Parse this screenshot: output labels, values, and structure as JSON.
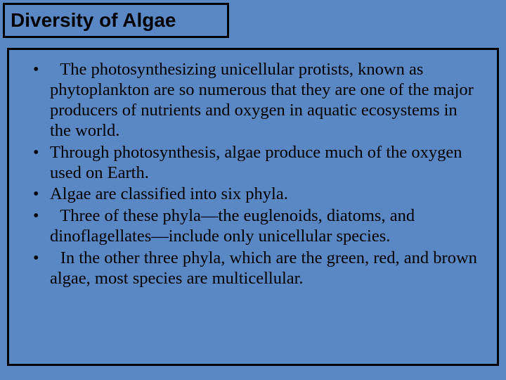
{
  "slide": {
    "background_color": "#5a88c4",
    "title_box": {
      "text": "Diversity of Algae",
      "background_color": "#5a88c4",
      "border_color": "#000000",
      "font_family": "Arial",
      "font_weight": "bold",
      "font_size_pt": 21,
      "text_color": "#000000"
    },
    "content_box": {
      "background_color": "#5a88c4",
      "border_color": "#000000",
      "font_family": "Times New Roman",
      "font_size_pt": 18,
      "text_color": "#000000",
      "bullets": [
        {
          "text": " The photosynthesizing unicellular protists, known as phytoplankton are so numerous that they are one of the major producers of nutrients and oxygen in aquatic ecosystems in the world.",
          "leading_space": true
        },
        {
          "text": "Through photosynthesis, algae produce much of the oxygen used on Earth.",
          "leading_space": false
        },
        {
          "text": "Algae are classified into six phyla.",
          "leading_space": false
        },
        {
          "text": " Three of these phyla—the euglenoids, diatoms, and dinoflagellates—include only unicellular species.",
          "leading_space": true
        },
        {
          "text": " In the other three phyla, which are the green, red, and brown algae, most species are multicellular.",
          "leading_space": true
        }
      ]
    }
  }
}
